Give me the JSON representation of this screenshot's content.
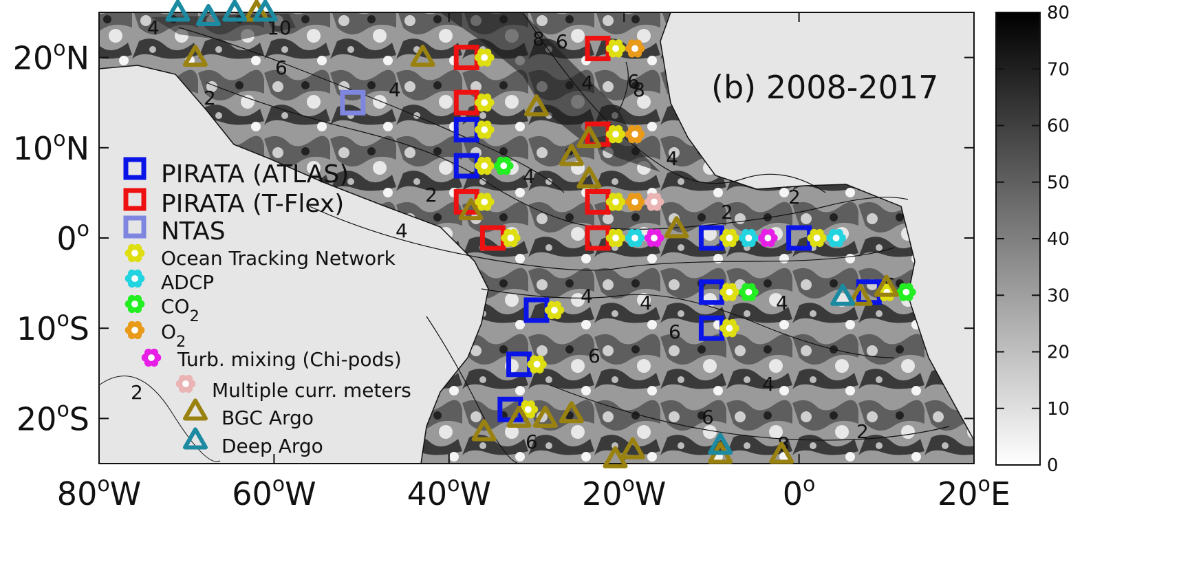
{
  "panel_title": "(b) 2008-2017",
  "x_ticks": [
    {
      "deg": "80",
      "sup": "o",
      "hemi": "W"
    },
    {
      "deg": "60",
      "sup": "o",
      "hemi": "W"
    },
    {
      "deg": "40",
      "sup": "o",
      "hemi": "W"
    },
    {
      "deg": "20",
      "sup": "o",
      "hemi": "W"
    },
    {
      "deg": "0",
      "sup": "o",
      "hemi": ""
    },
    {
      "deg": "20",
      "sup": "o",
      "hemi": "E"
    }
  ],
  "y_ticks": [
    {
      "deg": "20",
      "sup": "o",
      "hemi": "N"
    },
    {
      "deg": "10",
      "sup": "o",
      "hemi": "N"
    },
    {
      "deg": "0",
      "sup": "o",
      "hemi": ""
    },
    {
      "deg": "10",
      "sup": "o",
      "hemi": "S"
    },
    {
      "deg": "20",
      "sup": "o",
      "hemi": "S"
    }
  ],
  "colorbar": {
    "ticks": [
      "80",
      "70",
      "60",
      "50",
      "40",
      "30",
      "20",
      "10",
      "0"
    ],
    "range": [
      0,
      80
    ]
  },
  "contour_labels": [
    "2",
    "2",
    "2",
    "2",
    "2",
    "2",
    "4",
    "4",
    "4",
    "4",
    "4",
    "4",
    "4",
    "4",
    "4",
    "4",
    "6",
    "6",
    "6",
    "6",
    "6",
    "6",
    "6",
    "6",
    "8",
    "8",
    "8",
    "10"
  ],
  "legend": [
    {
      "label": "PIRATA (ATLAS)",
      "sub": "",
      "marker": "square",
      "color": "#0a14e6"
    },
    {
      "label": "PIRATA (T-Flex)",
      "sub": "",
      "marker": "square",
      "color": "#ee1111"
    },
    {
      "label": "NTAS",
      "sub": "",
      "marker": "square",
      "color": "#7f86e0"
    },
    {
      "label": "Ocean Tracking Network",
      "sub": "",
      "marker": "flower",
      "color": "#dede10"
    },
    {
      "label": "ADCP",
      "sub": "",
      "marker": "flower",
      "color": "#22d4e0"
    },
    {
      "label": "CO",
      "sub": "2",
      "marker": "flower",
      "color": "#22ee22"
    },
    {
      "label": "O",
      "sub": "2",
      "marker": "flower",
      "color": "#e89a18"
    },
    {
      "label": "Turb. mixing (Chi-pods)",
      "sub": "",
      "marker": "flower",
      "color": "#e61ee6"
    },
    {
      "label": "Multiple curr. meters",
      "sub": "",
      "marker": "flower",
      "color": "#eab4b4"
    },
    {
      "label": "BGC Argo",
      "sub": "",
      "marker": "triangle",
      "color": "#9a8210"
    },
    {
      "label": "Deep Argo",
      "sub": "",
      "marker": "triangle",
      "color": "#1c8aa0"
    }
  ],
  "map_extent": {
    "lon": [
      -80,
      20
    ],
    "lat": [
      -25,
      25
    ]
  },
  "stations": [
    {
      "lon": -38,
      "lat": 20,
      "types": [
        "PIRATA (T-Flex)",
        "Ocean Tracking Network"
      ]
    },
    {
      "lon": -38,
      "lat": 15,
      "types": [
        "PIRATA (T-Flex)",
        "Ocean Tracking Network"
      ]
    },
    {
      "lon": -38,
      "lat": 12,
      "types": [
        "PIRATA (ATLAS)",
        "Ocean Tracking Network"
      ]
    },
    {
      "lon": -38,
      "lat": 8,
      "types": [
        "PIRATA (ATLAS)",
        "Ocean Tracking Network",
        "CO2"
      ]
    },
    {
      "lon": -38,
      "lat": 4,
      "types": [
        "PIRATA (T-Flex)",
        "Ocean Tracking Network"
      ]
    },
    {
      "lon": -35,
      "lat": 0,
      "types": [
        "PIRATA (T-Flex)",
        "Ocean Tracking Network"
      ]
    },
    {
      "lon": -23,
      "lat": 21,
      "types": [
        "PIRATA (T-Flex)",
        "Ocean Tracking Network",
        "O2"
      ]
    },
    {
      "lon": -23,
      "lat": 11.5,
      "types": [
        "PIRATA (T-Flex)",
        "Ocean Tracking Network",
        "O2"
      ]
    },
    {
      "lon": -23,
      "lat": 4,
      "types": [
        "PIRATA (T-Flex)",
        "Ocean Tracking Network",
        "O2",
        "Multiple curr. meters"
      ]
    },
    {
      "lon": -23,
      "lat": 0,
      "types": [
        "PIRATA (T-Flex)",
        "Ocean Tracking Network",
        "ADCP",
        "Turb. mixing (Chi-pods)"
      ]
    },
    {
      "lon": -10,
      "lat": 0,
      "types": [
        "PIRATA (ATLAS)",
        "Ocean Tracking Network",
        "ADCP",
        "Turb. mixing (Chi-pods)"
      ]
    },
    {
      "lon": 0,
      "lat": 0,
      "types": [
        "PIRATA (ATLAS)",
        "Ocean Tracking Network",
        "ADCP"
      ]
    },
    {
      "lon": -10,
      "lat": -6,
      "types": [
        "PIRATA (ATLAS)",
        "Ocean Tracking Network",
        "CO2"
      ]
    },
    {
      "lon": -10,
      "lat": -10,
      "types": [
        "PIRATA (ATLAS)",
        "Ocean Tracking Network"
      ]
    },
    {
      "lon": 8,
      "lat": -6,
      "types": [
        "PIRATA (ATLAS)",
        "Ocean Tracking Network",
        "CO2"
      ]
    },
    {
      "lon": -30,
      "lat": -8,
      "types": [
        "PIRATA (ATLAS)",
        "Ocean Tracking Network"
      ]
    },
    {
      "lon": -32,
      "lat": -14,
      "types": [
        "PIRATA (ATLAS)",
        "Ocean Tracking Network"
      ]
    },
    {
      "lon": -33,
      "lat": -19,
      "types": [
        "PIRATA (ATLAS)",
        "Ocean Tracking Network"
      ]
    },
    {
      "lon": -51,
      "lat": 15,
      "types": [
        "NTAS"
      ]
    }
  ],
  "argo": [
    {
      "lon": -69,
      "lat": 20,
      "type": "BGC Argo"
    },
    {
      "lon": -43,
      "lat": 20,
      "type": "BGC Argo"
    },
    {
      "lon": -62,
      "lat": 25,
      "type": "BGC Argo"
    },
    {
      "lon": -30,
      "lat": 14.5,
      "type": "BGC Argo"
    },
    {
      "lon": -24,
      "lat": 11,
      "type": "BGC Argo"
    },
    {
      "lon": -26,
      "lat": 9,
      "type": "BGC Argo"
    },
    {
      "lon": -24,
      "lat": 6.5,
      "type": "BGC Argo"
    },
    {
      "lon": -37.5,
      "lat": 3,
      "type": "BGC Argo"
    },
    {
      "lon": -14,
      "lat": 1,
      "type": "BGC Argo"
    },
    {
      "lon": 7,
      "lat": -6.5,
      "type": "BGC Argo"
    },
    {
      "lon": 10,
      "lat": -5.5,
      "type": "BGC Argo"
    },
    {
      "lon": -26,
      "lat": -19.5,
      "type": "BGC Argo"
    },
    {
      "lon": -29,
      "lat": -20,
      "type": "BGC Argo"
    },
    {
      "lon": -32,
      "lat": -20,
      "type": "BGC Argo"
    },
    {
      "lon": -36,
      "lat": -21.5,
      "type": "BGC Argo"
    },
    {
      "lon": -21,
      "lat": -24.5,
      "type": "BGC Argo"
    },
    {
      "lon": -19,
      "lat": -23.5,
      "type": "BGC Argo"
    },
    {
      "lon": -2,
      "lat": -24,
      "type": "BGC Argo"
    },
    {
      "lon": -9,
      "lat": -24,
      "type": "BGC Argo"
    },
    {
      "lon": -71,
      "lat": 25,
      "type": "Deep Argo"
    },
    {
      "lon": -67.5,
      "lat": 24.5,
      "type": "Deep Argo"
    },
    {
      "lon": -64.5,
      "lat": 25,
      "type": "Deep Argo"
    },
    {
      "lon": -61,
      "lat": 25,
      "type": "Deep Argo"
    },
    {
      "lon": -9,
      "lat": -23,
      "type": "Deep Argo"
    },
    {
      "lon": 5,
      "lat": -6.5,
      "type": "Deep Argo"
    }
  ]
}
